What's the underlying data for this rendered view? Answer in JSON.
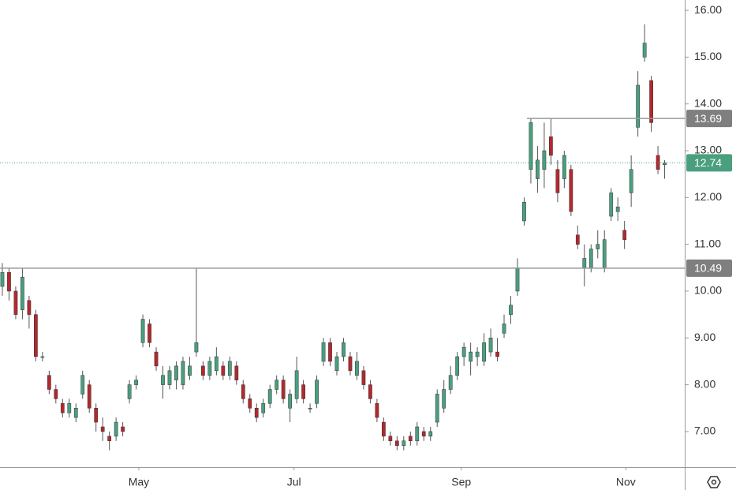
{
  "chart_data": {
    "type": "candlestick",
    "up_color": "#4a9f7e",
    "down_color": "#b3282e",
    "wick_color": "#555555",
    "series": {
      "open": [
        10.1,
        10.4,
        10.0,
        9.6,
        9.8,
        9.5,
        8.6,
        8.2,
        7.9,
        7.6,
        7.4,
        7.3,
        7.8,
        8.0,
        7.5,
        7.1,
        6.9,
        6.9,
        7.1,
        7.7,
        8.0,
        8.9,
        9.3,
        8.7,
        8.0,
        8.0,
        8.1,
        8.0,
        8.2,
        8.7,
        8.4,
        8.2,
        8.3,
        8.4,
        8.2,
        8.4,
        8.0,
        7.7,
        7.5,
        7.4,
        7.6,
        7.9,
        8.1,
        7.5,
        7.7,
        8.0,
        7.5,
        7.6,
        8.5,
        8.9,
        8.3,
        8.6,
        8.6,
        8.2,
        8.3,
        8.0,
        7.6,
        7.2,
        6.9,
        6.8,
        6.7,
        6.9,
        6.8,
        7.0,
        6.9,
        7.2,
        7.5,
        7.9,
        8.2,
        8.6,
        8.5,
        8.6,
        8.5,
        8.7,
        8.7,
        9.1,
        9.5,
        10.0,
        11.5,
        12.6,
        12.4,
        12.6,
        13.3,
        12.6,
        12.4,
        12.6,
        11.2,
        10.5,
        10.5,
        10.9,
        10.5,
        11.6,
        11.7,
        11.3,
        12.1,
        13.5,
        15.0,
        14.5,
        12.9,
        12.7
      ],
      "high": [
        10.6,
        10.5,
        10.1,
        10.5,
        9.9,
        9.6,
        8.7,
        8.3,
        8.0,
        7.7,
        7.7,
        7.6,
        8.3,
        8.1,
        7.6,
        7.3,
        7.0,
        7.3,
        7.2,
        8.1,
        8.2,
        9.5,
        9.4,
        8.8,
        8.4,
        8.4,
        8.5,
        8.6,
        8.6,
        10.5,
        8.5,
        8.6,
        8.8,
        8.5,
        8.6,
        8.5,
        8.1,
        7.8,
        7.6,
        7.7,
        8.0,
        8.2,
        8.2,
        7.9,
        8.6,
        8.1,
        7.6,
        8.2,
        9.0,
        9.0,
        8.7,
        9.0,
        8.7,
        8.7,
        8.4,
        8.1,
        7.7,
        7.3,
        7.0,
        6.9,
        6.9,
        7.0,
        7.2,
        7.1,
        7.1,
        7.9,
        8.1,
        8.4,
        8.7,
        8.9,
        8.9,
        8.8,
        9.1,
        9.2,
        9.0,
        9.5,
        9.9,
        10.7,
        12.0,
        13.7,
        13.1,
        13.6,
        13.7,
        12.8,
        13.0,
        12.7,
        11.4,
        11.0,
        11.0,
        11.3,
        11.3,
        12.2,
        12.0,
        11.5,
        12.9,
        14.7,
        15.7,
        14.6,
        13.1,
        12.8
      ],
      "low": [
        9.9,
        9.8,
        9.4,
        9.4,
        9.2,
        8.5,
        8.5,
        7.8,
        7.6,
        7.3,
        7.3,
        7.2,
        7.7,
        7.4,
        7.0,
        6.8,
        6.6,
        6.8,
        6.9,
        7.6,
        7.9,
        8.8,
        8.8,
        8.3,
        7.7,
        7.9,
        7.9,
        7.9,
        8.1,
        8.6,
        8.1,
        8.1,
        8.2,
        8.1,
        8.1,
        8.0,
        7.6,
        7.4,
        7.2,
        7.3,
        7.5,
        7.8,
        7.6,
        7.2,
        7.6,
        7.6,
        7.4,
        7.5,
        8.4,
        8.4,
        8.2,
        8.5,
        8.2,
        8.1,
        7.9,
        7.6,
        7.2,
        6.8,
        6.7,
        6.6,
        6.6,
        6.7,
        6.7,
        6.8,
        6.8,
        7.1,
        7.4,
        7.8,
        8.1,
        8.4,
        8.2,
        8.4,
        8.4,
        8.6,
        8.5,
        9.0,
        9.3,
        9.9,
        11.4,
        12.3,
        12.1,
        12.2,
        12.7,
        11.9,
        12.2,
        11.6,
        10.9,
        10.1,
        10.4,
        10.7,
        10.4,
        11.5,
        11.5,
        10.9,
        11.8,
        13.3,
        14.9,
        13.4,
        12.5,
        12.4
      ],
      "close": [
        10.4,
        10.0,
        9.5,
        10.3,
        9.5,
        8.6,
        8.6,
        7.9,
        7.7,
        7.4,
        7.6,
        7.5,
        8.2,
        7.5,
        7.2,
        7.0,
        6.8,
        7.2,
        7.0,
        8.0,
        8.1,
        9.4,
        8.9,
        8.4,
        8.2,
        8.3,
        8.4,
        8.5,
        8.4,
        8.9,
        8.2,
        8.5,
        8.6,
        8.2,
        8.5,
        8.1,
        7.7,
        7.5,
        7.3,
        7.6,
        7.9,
        8.1,
        7.7,
        7.8,
        8.3,
        7.7,
        7.5,
        8.1,
        8.9,
        8.5,
        8.6,
        8.9,
        8.3,
        8.5,
        8.0,
        7.7,
        7.3,
        6.9,
        6.8,
        6.7,
        6.8,
        6.8,
        7.1,
        6.9,
        7.0,
        7.8,
        7.9,
        8.2,
        8.6,
        8.8,
        8.7,
        8.7,
        8.9,
        9.0,
        8.6,
        9.3,
        9.7,
        10.5,
        11.9,
        13.6,
        12.8,
        13.0,
        12.9,
        12.1,
        12.9,
        11.7,
        11.0,
        10.7,
        10.9,
        11.0,
        11.1,
        12.1,
        11.8,
        11.1,
        12.6,
        14.4,
        15.3,
        13.6,
        12.6,
        12.74
      ]
    },
    "xlim": [
      -0.35,
      102
    ],
    "xticks": [
      {
        "value": 20.4,
        "label": "May"
      },
      {
        "value": 43.6,
        "label": "Jul"
      },
      {
        "value": 68.6,
        "label": "Sep"
      },
      {
        "value": 93.2,
        "label": "Nov"
      }
    ],
    "ylim": [
      6.24,
      16.22
    ],
    "yticks": [
      {
        "value": 7,
        "label": "7.00"
      },
      {
        "value": 8,
        "label": "8.00"
      },
      {
        "value": 9,
        "label": "9.00"
      },
      {
        "value": 10,
        "label": "10.00"
      },
      {
        "value": 11,
        "label": "11.00"
      },
      {
        "value": 12,
        "label": "12.00"
      },
      {
        "value": 13,
        "label": "13.00"
      },
      {
        "value": 14,
        "label": "14.00"
      },
      {
        "value": 15,
        "label": "15.00"
      },
      {
        "value": 16,
        "label": "16.00"
      }
    ],
    "price_lines": [
      13.69,
      10.49
    ]
  }
}
